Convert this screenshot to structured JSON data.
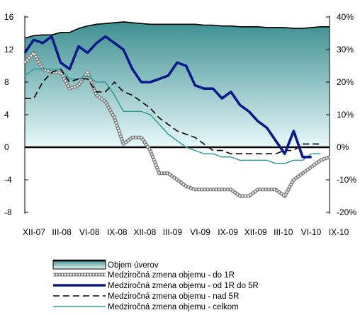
{
  "chart_data": {
    "type": "area+line",
    "title": "",
    "x": [
      "XII-07",
      "I-08",
      "II-08",
      "III-08",
      "IV-08",
      "V-08",
      "VI-08",
      "VII-08",
      "VIII-08",
      "IX-08",
      "X-08",
      "XI-08",
      "XII-08",
      "I-09",
      "II-09",
      "III-09",
      "IV-09",
      "V-09",
      "VI-09",
      "VII-09",
      "VIII-09",
      "IX-09",
      "X-09",
      "XI-09",
      "XII-09",
      "I-10",
      "II-10",
      "III-10",
      "IV-10",
      "V-10",
      "VI-10",
      "VII-10",
      "VIII-10",
      "IX-10",
      "X-10"
    ],
    "x_tick_labels": [
      "XII-07",
      "III-08",
      "VI-08",
      "IX-08",
      "XII-08",
      "III-09",
      "VI-09",
      "IX-09",
      "XII-09",
      "III-10",
      "VI-10",
      "IX-10"
    ],
    "y_left": {
      "ticks": [
        "-8",
        "-4",
        "0",
        "4",
        "8",
        "12",
        "16"
      ],
      "range": [
        -8,
        16
      ]
    },
    "y_right": {
      "ticks": [
        "-20%",
        "-10%",
        "0%",
        "10%",
        "20%",
        "30%",
        "40%"
      ],
      "range": [
        -20,
        40
      ]
    },
    "series": [
      {
        "name": "Objem úverov",
        "axis": "left",
        "style": "area",
        "values": [
          13.4,
          13.7,
          13.8,
          13.8,
          14.1,
          14.1,
          14.6,
          14.9,
          15.1,
          15.2,
          15.3,
          15.4,
          15.3,
          15.2,
          15.1,
          15.1,
          15.1,
          15.1,
          15.1,
          15.1,
          15.0,
          15.0,
          14.9,
          14.9,
          14.8,
          14.8,
          14.8,
          14.7,
          14.7,
          14.7,
          14.6,
          14.6,
          14.7,
          14.8,
          14.8
        ]
      },
      {
        "name": "Medziročná zmena objemu - do 1R",
        "axis": "right",
        "style": "grey-hatch",
        "values": [
          26,
          29,
          24,
          23,
          23,
          18,
          19,
          23,
          16,
          14,
          9,
          1,
          3,
          3,
          -1,
          -8,
          -8,
          -10,
          -12,
          -13,
          -13,
          -13,
          -13,
          -13,
          -15,
          -15,
          -13,
          -13,
          -13,
          -15,
          -10,
          -8,
          -6,
          -4,
          -3
        ]
      },
      {
        "name": "Medziročná zmena objemu - od 1R do 5R",
        "axis": "right",
        "style": "navy-thick",
        "values": [
          29,
          33,
          32,
          34,
          26,
          24,
          31,
          29,
          32,
          34,
          32,
          30,
          24,
          20,
          20,
          21,
          22,
          26,
          25,
          19,
          18,
          18,
          15,
          17,
          13,
          11,
          8,
          6,
          2,
          -2,
          5,
          -3,
          -3,
          null,
          null
        ]
      },
      {
        "name": "Medziročná zmena objemu - nad 5R",
        "axis": "right",
        "style": "black-dashed",
        "values": [
          15,
          15,
          20,
          23,
          24,
          20,
          21,
          21,
          17,
          17,
          20,
          17,
          16,
          14,
          12,
          9,
          7,
          5,
          4,
          3,
          1,
          -1,
          -1,
          -2,
          -2,
          -2,
          -2,
          -2,
          -2,
          -1,
          -1,
          1,
          1,
          1,
          null
        ]
      },
      {
        "name": "Medziročná zmena objemu - celkom",
        "axis": "right",
        "style": "teal-thin",
        "values": [
          22,
          24,
          24,
          24,
          24,
          21,
          21,
          22,
          20,
          20,
          16,
          11,
          11,
          11,
          10,
          7,
          4,
          2,
          0,
          -1,
          -2,
          -2,
          -3,
          -3,
          -4,
          -4,
          -4,
          -4,
          -5,
          -5,
          -4,
          -4,
          -2,
          -2,
          null
        ]
      }
    ],
    "legend_position": "bottom",
    "grid": false
  },
  "colors": {
    "area_fill_top": "#3d8f91",
    "area_fill_bottom": "#e8f9fa",
    "hatch": "#808080",
    "navy": "#0a1a8c",
    "dashed": "#000000",
    "teal": "#2b9c9a"
  }
}
